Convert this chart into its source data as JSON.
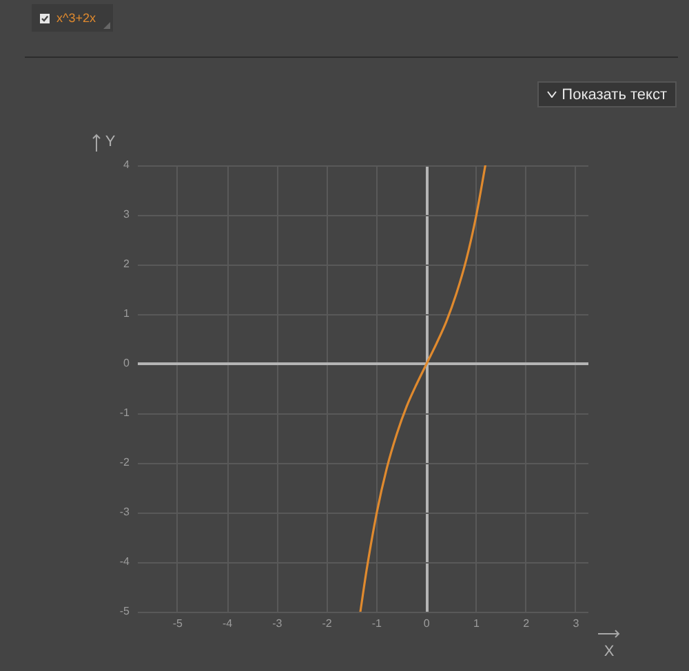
{
  "chart_data": {
    "type": "line",
    "xlabel": "X",
    "ylabel": "Y",
    "annotations": [
      "Показать текст"
    ],
    "legend": "top left",
    "grid": true,
    "marker": "none",
    "xlim": [
      -5.8,
      3.25
    ],
    "ylim": [
      -5,
      4
    ],
    "xticks": [
      -5,
      -4,
      -3,
      -2,
      -1,
      0,
      1,
      2,
      3
    ],
    "yticks": [
      -5,
      -4,
      -3,
      -2,
      -1,
      0,
      1,
      2,
      3,
      4
    ],
    "series": [
      {
        "name": "x^3+2x",
        "color": "#e08a2e",
        "x": [
          -1.33,
          -1.2,
          -1,
          -0.8,
          -0.6,
          -0.4,
          -0.2,
          0,
          0.2,
          0.4,
          0.6,
          0.8,
          1,
          1.18
        ],
        "values": [
          -5,
          -4.13,
          -3,
          -2.11,
          -1.42,
          -0.86,
          -0.41,
          0,
          0.41,
          0.86,
          1.42,
          2.11,
          3,
          4
        ]
      }
    ]
  }
}
